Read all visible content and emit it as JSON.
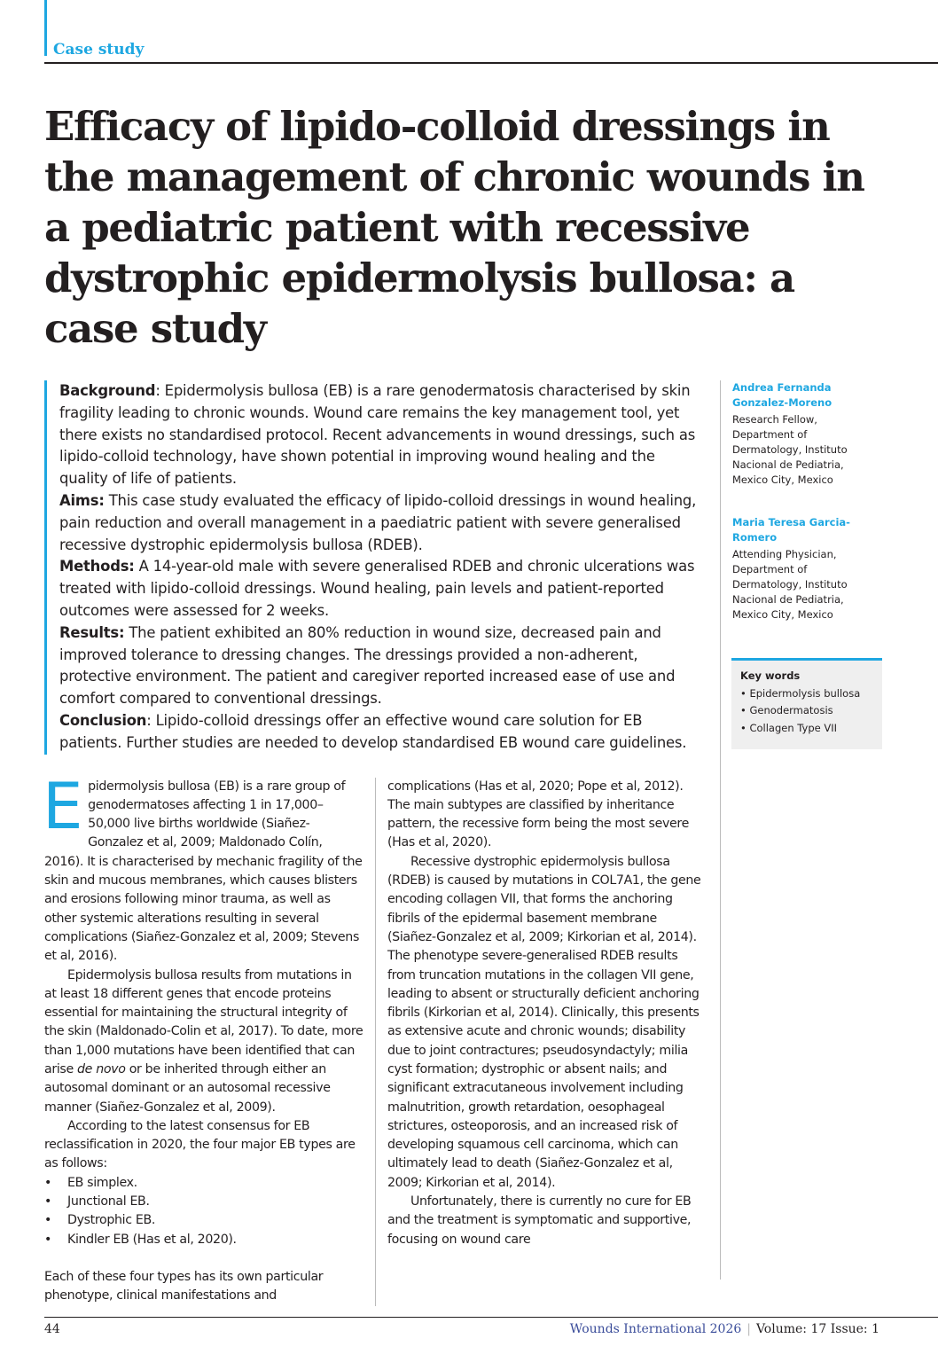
{
  "header": {
    "section": "Case study"
  },
  "title": "Efficacy of lipido-colloid dressings in the management of chronic wounds in a pediatric patient with recessive dystrophic epidermolysis bullosa: a case study",
  "abstract": [
    {
      "label": "Background",
      "text": ": Epidermolysis bullosa (EB) is a rare genodermatosis characterised by skin fragility leading to chronic wounds. Wound care remains the key management tool, yet there exists no standardised protocol. Recent advancements in wound dressings, such as lipido-colloid technology, have shown potential in improving wound healing and the quality of life of patients."
    },
    {
      "label": "Aims:",
      "text": " This case study evaluated the efficacy of lipido-colloid dressings in wound healing, pain reduction and overall management in a paediatric patient with severe generalised recessive dystrophic epidermolysis bullosa (RDEB)."
    },
    {
      "label": "Methods:",
      "text": " A 14-year-old male with severe generalised RDEB and chronic ulcerations was treated with lipido-colloid dressings. Wound healing, pain levels and patient-reported outcomes were assessed for 2 weeks."
    },
    {
      "label": "Results:",
      "text": " The patient exhibited an 80% reduction in wound size, decreased pain and improved tolerance to dressing changes. The dressings provided a non-adherent, protective environment. The patient and caregiver reported increased ease of use and comfort compared to conventional dressings."
    },
    {
      "label": "Conclusion",
      "text": ": Lipido-colloid dressings offer an effective wound care solution for EB patients. Further studies are needed to develop standardised EB wound care guidelines."
    }
  ],
  "authors": [
    {
      "name": "Andrea Fernanda Gonzalez-Moreno",
      "affiliation": "Research Fellow, Department of Dermatology, Instituto Nacional de Pediatria, Mexico City, Mexico"
    },
    {
      "name": "Maria Teresa Garcia-Romero",
      "affiliation": "Attending Physician, Department of Dermatology, Instituto Nacional de Pediatria, Mexico City, Mexico"
    }
  ],
  "keywords": {
    "heading": "Key words",
    "items": [
      "Epidermolysis bullosa",
      "Genodermatosis",
      "Collagen Type VII"
    ]
  },
  "body": {
    "dropcap": "E",
    "p1": "pidermolysis bullosa (EB) is a rare group of genodermatoses affecting 1 in 17,000–50,000 live births worldwide (Siañez-Gonzalez et al, 2009; Maldonado Colín, 2016). It is characterised by mechanic fragility of the skin and mucous membranes, which causes blisters and erosions following minor trauma, as well as other systemic alterations resulting in several complications (Siañez-Gonzalez et al, 2009; Stevens et al, 2016).",
    "p2a": "Epidermolysis bullosa results from mutations in at least 18 different genes that encode proteins essential for maintaining the structural integrity of the skin (Maldonado-Colin et al, 2017). To date, more than 1,000 mutations have been identified that can arise ",
    "p2i": "de novo",
    "p2b": " or be inherited through either an autosomal dominant or an autosomal recessive manner (Siañez-Gonzalez et al, 2009).",
    "p3": "According to the latest consensus for EB reclassification in 2020, the four major EB types are as follows:",
    "types": [
      "EB simplex.",
      "Junctional EB.",
      "Dystrophic EB.",
      "Kindler EB (Has et al, 2020)."
    ],
    "p4": "Each of these four types has its own particular phenotype, clinical manifestations and",
    "p5": "complications (Has et al, 2020; Pope et al, 2012). The main subtypes are classified by inheritance pattern, the recessive form being the most severe (Has et al, 2020).",
    "p6": "Recessive dystrophic epidermolysis bullosa (RDEB) is caused by mutations in COL7A1, the gene encoding collagen VII, that forms the anchoring fibrils of the epidermal basement membrane (Siañez-Gonzalez et al, 2009; Kirkorian et al, 2014). The phenotype severe-generalised RDEB results from truncation mutations in the collagen VII gene, leading to absent or structurally deficient anchoring fibrils (Kirkorian et al, 2014). Clinically, this presents as extensive acute and chronic wounds; disability due to joint contractures; pseudosyndactyly; milia cyst formation; dystrophic or absent nails; and significant extracutaneous involvement including malnutrition, growth retardation, oesophageal strictures, osteoporosis, and an increased risk of developing squamous cell carcinoma, which can ultimately lead to death (Siañez-Gonzalez et al, 2009; Kirkorian et al, 2014).",
    "p7": "Unfortunately, there is currently no cure for EB and the treatment is symptomatic and supportive, focusing on wound care"
  },
  "footer": {
    "page": "44",
    "journal": "Wounds International 2026",
    "separator": "|",
    "issue": "Volume: 17 Issue: 1"
  },
  "colors": {
    "accent": "#1ea7e1",
    "journal": "#3b4d9a",
    "keywords_bg": "#efefef"
  }
}
